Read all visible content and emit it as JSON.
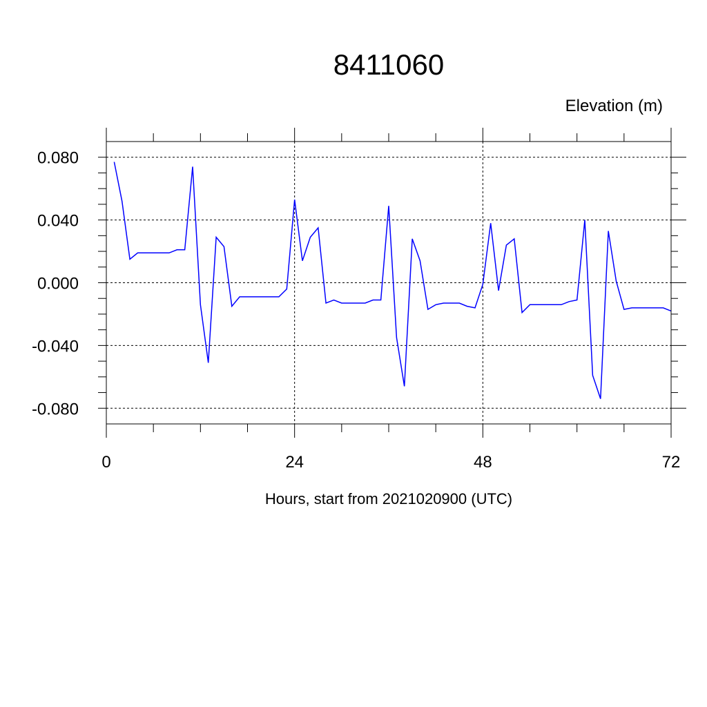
{
  "chart_data": {
    "type": "line",
    "title": "8411060",
    "ylabel": "Elevation (m)",
    "xlabel": "Hours, start from 2021020900 (UTC)",
    "xlim": [
      0,
      72
    ],
    "ylim": [
      -0.09,
      0.09
    ],
    "x_ticks": [
      0,
      24,
      48,
      72
    ],
    "x_tick_labels": [
      "0",
      "24",
      "48",
      "72"
    ],
    "y_ticks": [
      0.08,
      0.04,
      0.0,
      -0.04,
      -0.08
    ],
    "y_tick_labels": [
      "0.080",
      "0.040",
      "0.000",
      "-0.040",
      "-0.080"
    ],
    "grid": true,
    "series": [
      {
        "color": "#0000ff",
        "x": [
          1,
          2,
          3,
          4,
          5,
          6,
          7,
          8,
          9,
          10,
          11,
          12,
          13,
          14,
          15,
          16,
          17,
          18,
          19,
          20,
          21,
          22,
          23,
          24,
          25,
          26,
          27,
          28,
          29,
          30,
          31,
          32,
          33,
          34,
          35,
          36,
          37,
          38,
          39,
          40,
          41,
          42,
          43,
          44,
          45,
          46,
          47,
          48,
          49,
          50,
          51,
          52,
          53,
          54,
          55,
          56,
          57,
          58,
          59,
          60,
          61,
          62,
          63,
          64,
          65,
          66,
          67,
          68,
          69,
          70,
          71,
          72
        ],
        "values": [
          0.077,
          0.052,
          0.015,
          0.019,
          0.019,
          0.019,
          0.019,
          0.019,
          0.021,
          0.021,
          0.074,
          -0.014,
          -0.051,
          0.029,
          0.023,
          -0.015,
          -0.009,
          -0.009,
          -0.009,
          -0.009,
          -0.009,
          -0.009,
          -0.004,
          0.053,
          0.014,
          0.029,
          0.035,
          -0.013,
          -0.011,
          -0.013,
          -0.013,
          -0.013,
          -0.013,
          -0.011,
          -0.011,
          0.049,
          -0.035,
          -0.066,
          0.028,
          0.014,
          -0.017,
          -0.014,
          -0.013,
          -0.013,
          -0.013,
          -0.015,
          -0.016,
          -0.001,
          0.038,
          -0.005,
          0.024,
          0.028,
          -0.019,
          -0.014,
          -0.014,
          -0.014,
          -0.014,
          -0.014,
          -0.012,
          -0.011,
          0.04,
          -0.059,
          -0.074,
          0.033,
          0.001,
          -0.017,
          -0.016,
          -0.016,
          -0.016,
          -0.016,
          -0.016,
          -0.018
        ]
      }
    ]
  }
}
